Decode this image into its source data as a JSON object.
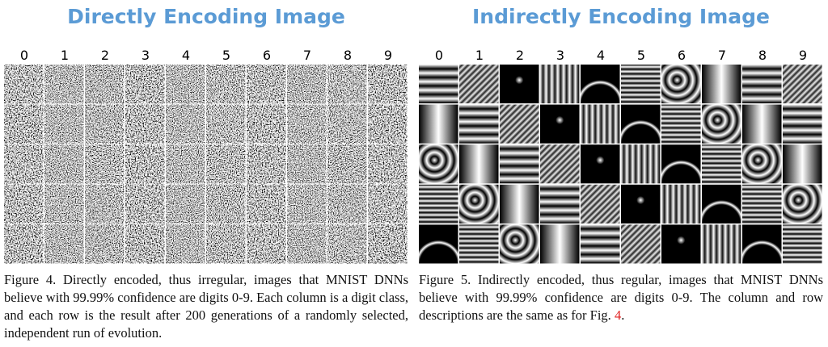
{
  "panels": [
    {
      "title": "Directly Encoding Image",
      "columns": [
        "0",
        "1",
        "2",
        "3",
        "4",
        "5",
        "6",
        "7",
        "8",
        "9"
      ],
      "caption": [
        "Figure 4. Directly encoded, thus irregular, images that MNIST DNNs believe with 99.99% confidence are digits 0-9. Each column is a digit class, and each row is the result after 200 generations of a randomly selected, independent run of evolution."
      ]
    },
    {
      "title": "Indirectly Encoding Image",
      "columns": [
        "0",
        "1",
        "2",
        "3",
        "4",
        "5",
        "6",
        "7",
        "8",
        "9"
      ],
      "caption": [
        "Figure 5. Indirectly encoded, thus regular, images that MNIST DNNs believe with 99.99% confidence are digits 0-9. The column and row descriptions are the same as for Fig. ",
        "4",
        "."
      ]
    }
  ]
}
